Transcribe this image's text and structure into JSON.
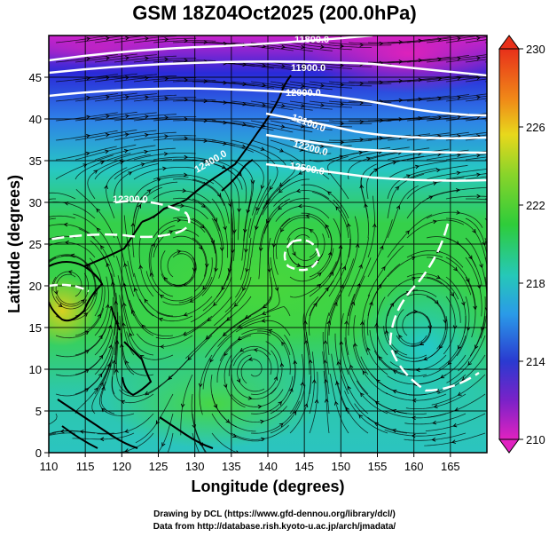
{
  "title": "GSM 18Z04Oct2025 (200.0hPa)",
  "x_axis": {
    "label": "Longitude (degrees)",
    "ticks": [
      "110",
      "115",
      "120",
      "125",
      "130",
      "135",
      "140",
      "145",
      "150",
      "155",
      "160",
      "165"
    ]
  },
  "y_axis": {
    "label": "Latitude  (degrees)",
    "ticks": [
      "0",
      "5",
      "10",
      "15",
      "20",
      "25",
      "30",
      "35",
      "40",
      "45"
    ]
  },
  "colorbar": {
    "ticks": [
      "230",
      "226",
      "222",
      "218",
      "214",
      "210"
    ]
  },
  "contours": [
    "11800.0",
    "11900.0",
    "12000.0",
    "12100.0",
    "12200.0",
    "12300.0",
    "12400.0",
    "12500.0"
  ],
  "credits": {
    "line1": "Drawing by DCL (https://www.gfd-dennou.org/library/dcl/)",
    "line2": "Data from http://database.rish.kyoto-u.ac.jp/arch/jmadata/"
  },
  "map": {
    "projection": "lat-lon",
    "lon_range": [
      110,
      170
    ],
    "lat_range": [
      0,
      50
    ],
    "shading_variable": "temperature (K)",
    "colorbar_range": [
      210,
      230
    ],
    "contour_variable": "geopotential height (m)",
    "streamlines": true,
    "grid": true
  }
}
